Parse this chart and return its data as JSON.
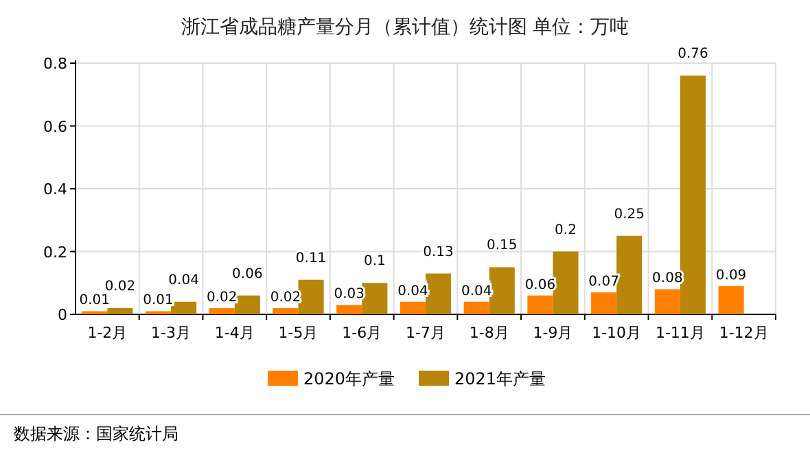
{
  "chart_data": {
    "type": "bar",
    "title": "浙江省成品糖产量分月（累计值）统计图 单位：万吨",
    "categories": [
      "1-2月",
      "1-3月",
      "1-4月",
      "1-5月",
      "1-6月",
      "1-7月",
      "1-8月",
      "1-9月",
      "1-10月",
      "1-11月",
      "1-12月"
    ],
    "series": [
      {
        "name": "2020年产量",
        "color": "#ff8000",
        "values": [
          0.01,
          0.01,
          0.02,
          0.02,
          0.03,
          0.04,
          0.04,
          0.06,
          0.07,
          0.08,
          0.09
        ]
      },
      {
        "name": "2021年产量",
        "color": "#b8860b",
        "values": [
          0.02,
          0.04,
          0.06,
          0.11,
          0.1,
          0.13,
          0.15,
          0.2,
          0.25,
          0.76,
          null
        ]
      }
    ],
    "ylim": [
      0,
      0.8
    ],
    "yticks": [
      0,
      0.2,
      0.4,
      0.6,
      0.8
    ],
    "grid": true,
    "legend": "bottom",
    "data_labels": true,
    "annotations": [
      "数据来源：国家统计局"
    ]
  }
}
